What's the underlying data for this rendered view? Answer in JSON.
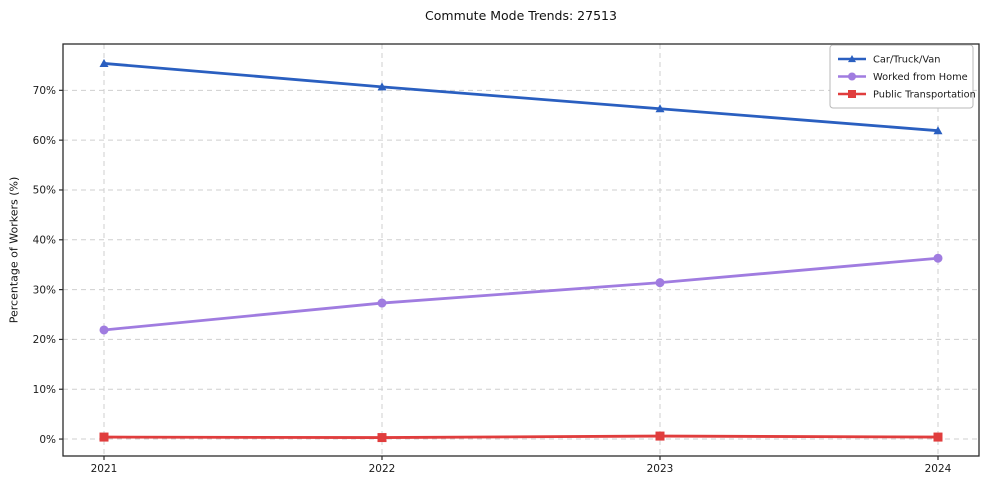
{
  "chart_data": {
    "type": "line",
    "title": "Commute Mode Trends: 27513",
    "ylabel": "Percentage of Workers (%)",
    "xlabel": "",
    "categories": [
      "2021",
      "2022",
      "2023",
      "2024"
    ],
    "series": [
      {
        "name": "Car/Truck/Van",
        "marker": "triangle",
        "color": "#2a5fc0",
        "values": [
          75.4,
          70.7,
          66.3,
          61.9
        ]
      },
      {
        "name": "Worked from Home",
        "marker": "circle",
        "color": "#a07ce0",
        "values": [
          21.9,
          27.3,
          31.4,
          36.3
        ]
      },
      {
        "name": "Public Transportation",
        "marker": "square",
        "color": "#e03d3d",
        "values": [
          0.4,
          0.3,
          0.6,
          0.4
        ]
      }
    ],
    "yticks": [
      0,
      10,
      20,
      30,
      40,
      50,
      60,
      70
    ],
    "ytick_labels": [
      "0%",
      "10%",
      "20%",
      "30%",
      "40%",
      "50%",
      "60%",
      "70%"
    ],
    "ylim": [
      -3.4,
      79.3
    ],
    "grid": "dashed, both axes",
    "legend_position": "upper right",
    "colors": {
      "grid": "#cfcfcf",
      "spine": "#2b2b2b",
      "tick_text": "#1a1a1a",
      "legend_border": "#b9b9b9",
      "background": "#ffffff"
    }
  }
}
